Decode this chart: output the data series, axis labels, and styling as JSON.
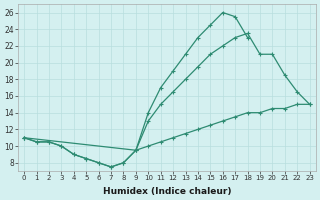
{
  "line1_x": [
    0,
    1,
    2,
    3,
    4,
    5,
    6,
    7,
    8,
    9,
    10,
    11,
    12,
    13,
    14,
    15,
    16,
    17,
    18
  ],
  "line1_y": [
    11,
    10.5,
    10.5,
    10,
    9,
    8.5,
    8,
    7.5,
    8,
    9.5,
    14,
    17,
    19,
    21,
    23,
    24.5,
    26,
    25.5,
    23
  ],
  "line2_x": [
    0,
    9,
    10,
    11,
    12,
    13,
    14,
    15,
    16,
    17,
    18,
    19,
    20,
    21,
    22,
    23
  ],
  "line2_y": [
    11,
    9.5,
    13,
    15,
    16.5,
    18,
    19.5,
    21,
    22,
    23,
    23.5,
    21,
    21,
    18.5,
    16.5,
    15
  ],
  "line3_x": [
    0,
    1,
    2,
    3,
    4,
    5,
    6,
    7,
    8,
    9,
    10,
    11,
    12,
    13,
    14,
    15,
    16,
    17,
    18,
    19,
    20,
    21,
    22,
    23
  ],
  "line3_y": [
    11,
    10.5,
    10.5,
    10,
    9,
    8.5,
    8,
    7.5,
    8,
    9.5,
    10,
    10.5,
    11,
    11.5,
    12,
    12.5,
    13,
    13.5,
    14,
    14,
    14.5,
    14.5,
    15,
    15
  ],
  "color": "#2e8b72",
  "bg_color": "#d4f0f0",
  "grid_color": "#b8dede",
  "xlabel": "Humidex (Indice chaleur)",
  "ylim": [
    7,
    27
  ],
  "xlim": [
    -0.5,
    23.5
  ],
  "yticks": [
    8,
    10,
    12,
    14,
    16,
    18,
    20,
    22,
    24,
    26
  ],
  "xticks": [
    0,
    1,
    2,
    3,
    4,
    5,
    6,
    7,
    8,
    9,
    10,
    11,
    12,
    13,
    14,
    15,
    16,
    17,
    18,
    19,
    20,
    21,
    22,
    23
  ],
  "marker": "+"
}
